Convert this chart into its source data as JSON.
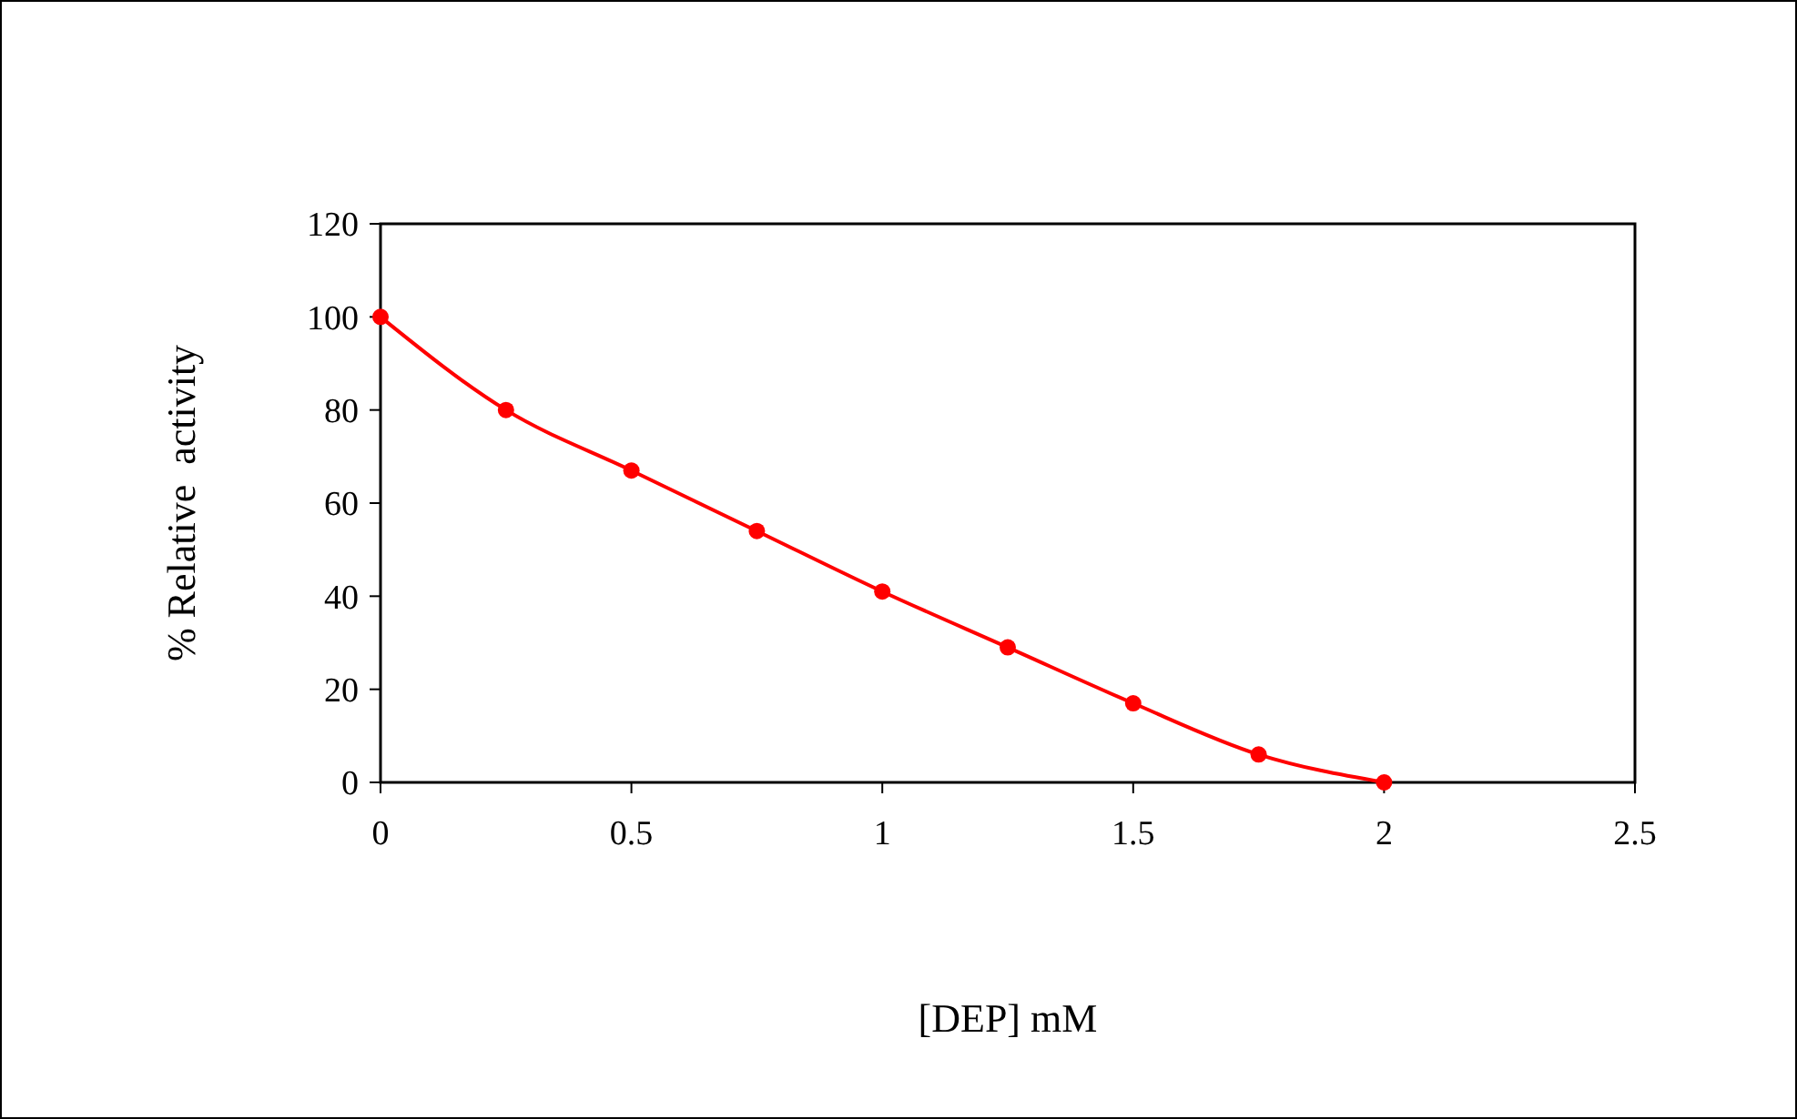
{
  "chart_data": {
    "type": "line",
    "xlabel": "[DEP] mM",
    "ylabel": "% Relative  activity",
    "x": [
      0,
      0.25,
      0.5,
      0.75,
      1,
      1.25,
      1.5,
      1.75,
      2
    ],
    "series": [
      {
        "color": "#ff0000",
        "values": [
          100,
          80,
          67,
          54,
          41,
          29,
          17,
          6,
          0
        ]
      }
    ],
    "xlim": [
      0,
      2.5
    ],
    "xticks": [
      0,
      0.5,
      1,
      1.5,
      2,
      2.5
    ],
    "ylim": [
      0,
      120
    ],
    "yticks": [
      0,
      20,
      40,
      60,
      80,
      100,
      120
    ],
    "marker": "circle",
    "line_style": "solid"
  }
}
